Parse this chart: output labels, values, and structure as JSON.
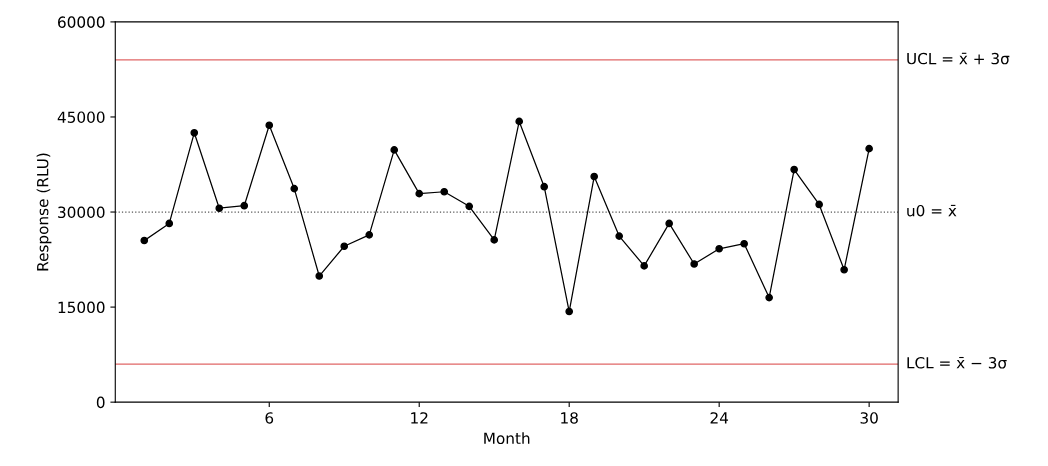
{
  "chart_data": {
    "type": "line",
    "xlabel": "Month",
    "ylabel": "Response (RLU)",
    "x": [
      1,
      2,
      3,
      4,
      5,
      6,
      7,
      8,
      9,
      10,
      11,
      12,
      13,
      14,
      15,
      16,
      17,
      18,
      19,
      20,
      21,
      22,
      23,
      24,
      25,
      26,
      27,
      28,
      29,
      30
    ],
    "series": [
      {
        "color": "#000000",
        "values": [
          25500,
          28200,
          42500,
          30600,
          31000,
          43700,
          33700,
          19900,
          24600,
          26400,
          39800,
          32900,
          33200,
          30900,
          25600,
          44300,
          34000,
          14300,
          35600,
          26200,
          21500,
          28200,
          21800,
          24200,
          25000,
          16500,
          36700,
          31200,
          20900,
          40000
        ]
      }
    ],
    "xlim": [
      -0.16,
      31.16
    ],
    "xticks": [
      6,
      12,
      18,
      24,
      30
    ],
    "ylim": [
      0,
      60000
    ],
    "yticks": [
      0,
      15000,
      30000,
      45000,
      60000
    ],
    "marker": "circle",
    "line_style": "solid",
    "grid": false,
    "legend": false,
    "ref_lines": [
      {
        "axis": "y",
        "value": 54000,
        "label": "UCL = x̄ + 3σ",
        "color": "#e06666",
        "line_style": "solid"
      },
      {
        "axis": "y",
        "value": 30000,
        "label": "u0 = x̄",
        "color": "#555555",
        "line_style": "dotted"
      },
      {
        "axis": "y",
        "value": 6000,
        "label": "LCL = x̄ − 3σ",
        "color": "#e06666",
        "line_style": "solid"
      }
    ]
  }
}
